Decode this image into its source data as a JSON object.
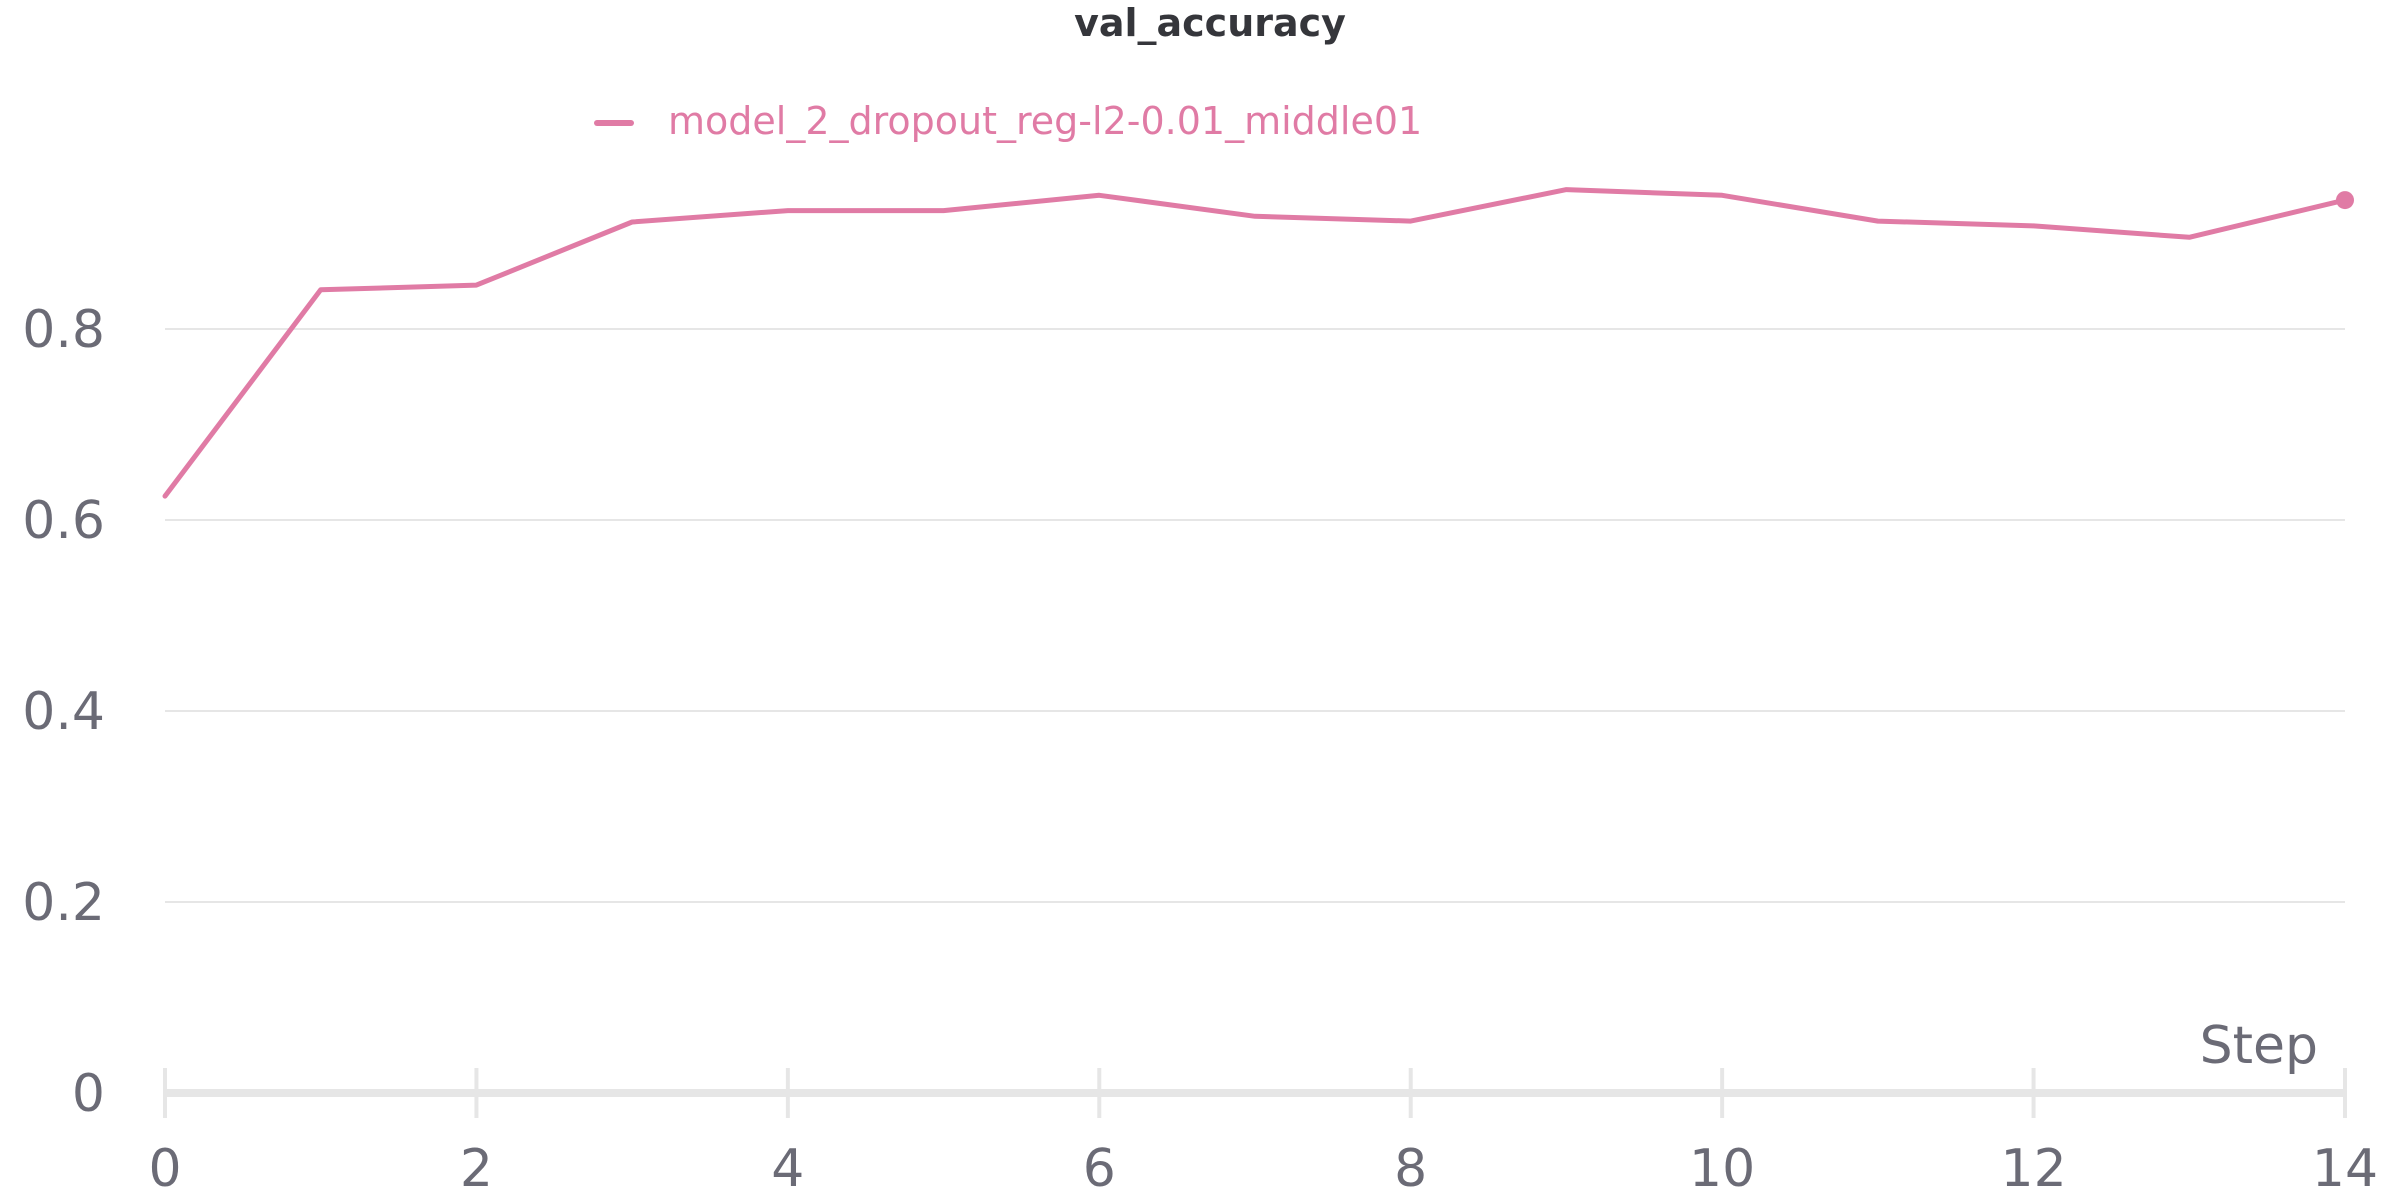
{
  "chart_data": {
    "type": "line",
    "title": "val_accuracy",
    "xlabel": "Step",
    "ylabel": "",
    "xlim": [
      0,
      14
    ],
    "ylim": [
      0,
      1
    ],
    "x_ticks": [
      0,
      2,
      4,
      6,
      8,
      10,
      12,
      14
    ],
    "y_ticks": [
      0,
      0.2,
      0.4,
      0.6,
      0.8
    ],
    "grid": "horizontal",
    "legend": "top",
    "series": [
      {
        "name": "model_2_dropout_reg-l2-0.01_middle01",
        "color": "#e07ba5",
        "x": [
          0,
          1,
          2,
          3,
          4,
          5,
          6,
          7,
          8,
          9,
          10,
          11,
          12,
          13,
          14
        ],
        "values": [
          0.625,
          0.841,
          0.846,
          0.912,
          0.924,
          0.924,
          0.94,
          0.918,
          0.913,
          0.946,
          0.94,
          0.913,
          0.908,
          0.896,
          0.935
        ]
      }
    ]
  }
}
